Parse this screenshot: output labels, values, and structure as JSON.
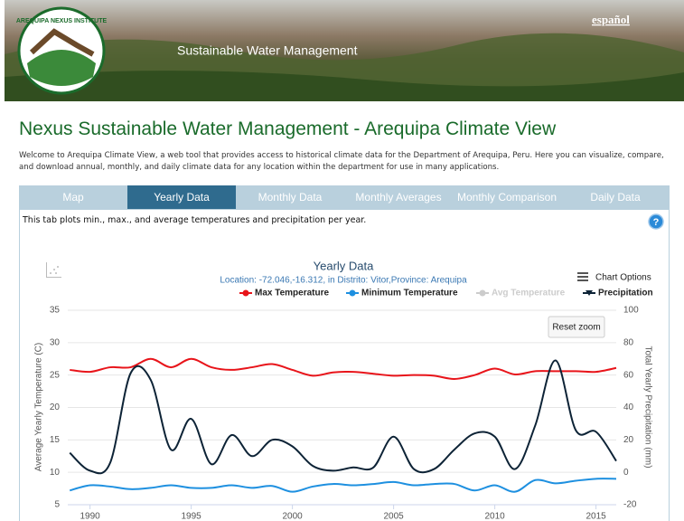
{
  "header": {
    "logo_text": "AREQUIPA NEXUS INSTITUTE",
    "subtitle": "Sustainable Water Management",
    "language": "español"
  },
  "title": "Nexus Sustainable Water Management - Arequipa Climate View",
  "intro": "Welcome to Arequipa Climate View, a web tool that provides access to historical climate data for the Department of Arequipa, Peru. Here you can visualize, compare, and download annual, monthly, and daily climate data for any location within the department for use in many applications.",
  "tabs": [
    "Map",
    "Yearly Data",
    "Monthly Data",
    "Monthly Averages",
    "Monthly Comparison",
    "Daily Data"
  ],
  "active_tab": 1,
  "tab_description": "This tab plots min., max., and average temperatures and precipitation per year.",
  "help": "?",
  "chart_options": "Chart Options",
  "reset_zoom": "Reset zoom",
  "chart_data": {
    "type": "line",
    "title": "Yearly Data",
    "subtitle": "Location: -72.046,-16.312, in Distrito: Vitor,Province: Arequipa",
    "y_label": "Average Yearly Temperature (C)",
    "y2_label": "Total Yearly Precipitation (mm)",
    "x": [
      1989,
      1990,
      1991,
      1992,
      1993,
      1994,
      1995,
      1996,
      1997,
      1998,
      1999,
      2000,
      2001,
      2002,
      2003,
      2004,
      2005,
      2006,
      2007,
      2008,
      2009,
      2010,
      2011,
      2012,
      2013,
      2014,
      2015,
      2016
    ],
    "xlim": [
      1988.9,
      2016.0
    ],
    "xticks": [
      1990,
      1995,
      2000,
      2005,
      2010,
      2015
    ],
    "ylim": [
      5,
      35
    ],
    "yticks": [
      5,
      10,
      15,
      20,
      25,
      30,
      35
    ],
    "y2lim": [
      -20,
      100
    ],
    "y2ticks": [
      -20,
      0,
      20,
      40,
      60,
      80,
      100
    ],
    "grid": true,
    "series": [
      {
        "name": "Max Temperature",
        "color": "#e8141a",
        "values": [
          25.8,
          25.5,
          26.2,
          26.2,
          27.5,
          26.2,
          27.5,
          26.2,
          25.8,
          26.2,
          26.7,
          25.8,
          24.9,
          25.4,
          25.5,
          25.2,
          24.9,
          25.0,
          24.9,
          24.4,
          25.0,
          26.0,
          25.1,
          25.6,
          25.6,
          25.6,
          25.5,
          26.1
        ]
      },
      {
        "name": "Minimum Temperature",
        "color": "#1e90e0",
        "values": [
          7.2,
          8.0,
          7.8,
          7.4,
          7.6,
          8.0,
          7.6,
          7.6,
          8.0,
          7.6,
          7.9,
          7.0,
          7.8,
          8.2,
          8.0,
          8.2,
          8.5,
          8.0,
          8.2,
          8.2,
          7.2,
          8.0,
          7.0,
          8.8,
          8.3,
          8.7,
          9.0,
          9.0
        ]
      },
      {
        "name": "Avg Temperature",
        "color": "#cccccc",
        "visible": false
      },
      {
        "name": "Precipitation",
        "color": "#0d2336",
        "axis": "y2",
        "values": [
          12,
          1,
          6,
          61,
          57,
          14,
          33,
          5,
          23,
          10,
          20,
          16,
          4,
          1,
          3,
          3,
          22,
          2,
          2,
          14,
          24,
          22,
          2,
          29,
          69,
          26,
          25,
          7
        ]
      }
    ]
  }
}
